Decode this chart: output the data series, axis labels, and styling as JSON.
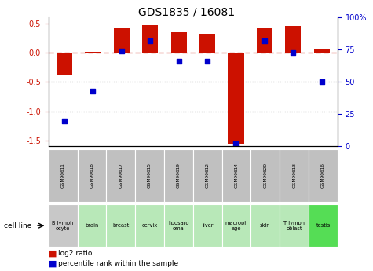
{
  "title": "GDS1835 / 16081",
  "gsm_labels": [
    "GSM90611",
    "GSM90618",
    "GSM90617",
    "GSM90615",
    "GSM90619",
    "GSM90612",
    "GSM90614",
    "GSM90620",
    "GSM90613",
    "GSM90616"
  ],
  "cell_lines": [
    "B lymph\nocyte",
    "brain",
    "breast",
    "cervix",
    "liposaro\noma",
    "liver",
    "macroph\nage",
    "skin",
    "T lymph\noblast",
    "testis"
  ],
  "cell_bg": [
    "#c8c8c8",
    "#b8e8b8",
    "#b8e8b8",
    "#b8e8b8",
    "#b8e8b8",
    "#b8e8b8",
    "#b8e8b8",
    "#b8e8b8",
    "#b8e8b8",
    "#55dd55"
  ],
  "log2_ratio": [
    -0.38,
    0.02,
    0.42,
    0.47,
    0.35,
    0.32,
    -1.55,
    0.42,
    0.46,
    0.05
  ],
  "percentile_rank": [
    20,
    43,
    74,
    82,
    66,
    66,
    2,
    82,
    73,
    50
  ],
  "ylim_left": [
    -1.6,
    0.6
  ],
  "ylim_right": [
    0,
    100
  ],
  "bar_color": "#cc1100",
  "dot_color": "#0000cc",
  "background_color": "#ffffff",
  "plot_bg": "#ffffff",
  "left_yticks": [
    -1.5,
    -1.0,
    -0.5,
    0.0,
    0.5
  ],
  "right_yticks": [
    0,
    25,
    50,
    75,
    100
  ],
  "right_ytick_labels": [
    "0",
    "25",
    "50",
    "75",
    "100%"
  ],
  "gsm_box_color": "#c0c0c0",
  "cell_line_label": "cell line"
}
